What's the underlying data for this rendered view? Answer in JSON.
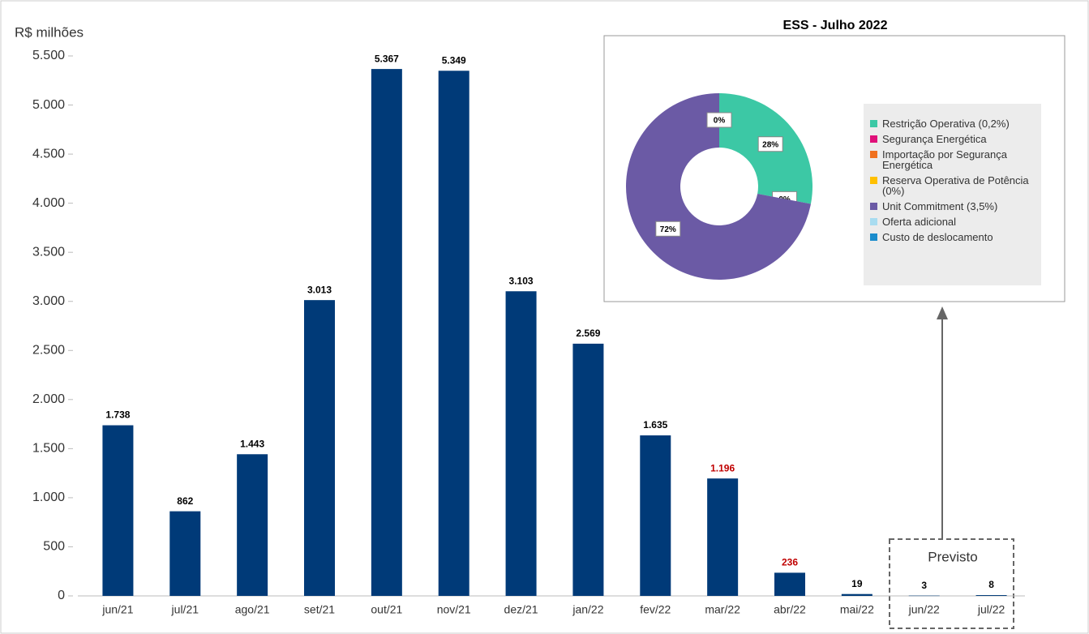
{
  "chart_data": [
    {
      "type": "bar",
      "ylabel": "R$ milhões",
      "categories": [
        "jun/21",
        "jul/21",
        "ago/21",
        "set/21",
        "out/21",
        "nov/21",
        "dez/21",
        "jan/22",
        "fev/22",
        "mar/22",
        "abr/22",
        "mai/22",
        "jun/22",
        "jul/22"
      ],
      "values": [
        1738,
        862,
        1443,
        3013,
        5367,
        5349,
        3103,
        2569,
        1635,
        1196,
        236,
        19,
        3,
        8
      ],
      "value_labels": [
        "1.738",
        "862",
        "1.443",
        "3.013",
        "5.367",
        "5.349",
        "3.103",
        "2.569",
        "1.635",
        "1.196",
        "236",
        "19",
        "3",
        "8"
      ],
      "value_label_colors": [
        "#000000",
        "#000000",
        "#000000",
        "#000000",
        "#000000",
        "#000000",
        "#000000",
        "#000000",
        "#000000",
        "#c00000",
        "#c00000",
        "#000000",
        "#000000",
        "#000000"
      ],
      "color": "#003a78",
      "ylim": [
        0,
        5500
      ],
      "yticks": [
        0,
        500,
        {
          "value": 1000,
          "label": "1.000"
        },
        {
          "value": 1500,
          "label": "1.500"
        },
        {
          "value": 2000,
          "label": "2.000"
        },
        {
          "value": 2500,
          "label": "2.500"
        },
        {
          "value": 3000,
          "label": "3.000"
        },
        {
          "value": 3500,
          "label": "3.500"
        },
        {
          "value": 4000,
          "label": "4.000"
        },
        {
          "value": 4500,
          "label": "4.500"
        },
        {
          "value": 5000,
          "label": "5.000"
        },
        {
          "value": 5500,
          "label": "5.500"
        }
      ],
      "grid": false,
      "annotation": "Previsto"
    },
    {
      "type": "pie",
      "title": "ESS - Julho 2022",
      "donut": true,
      "legend": "right",
      "categories": [
        "Restrição Operativa (0,2%)",
        "Segurança Energética",
        "Importação por Segurança Energética",
        "Reserva Operativa de Potência (0%)",
        "Unit Commitment (3,5%)",
        "Oferta adicional",
        "Custo de deslocamento"
      ],
      "values": [
        28,
        0,
        0,
        0,
        72,
        0,
        0
      ],
      "value_labels": [
        "28%",
        null,
        "0%",
        null,
        "72%",
        null,
        "0%"
      ],
      "colors": [
        "#3cc8a5",
        "#e0107a",
        "#f0701e",
        "#ffc000",
        "#6b5aa5",
        "#a8dcf0",
        "#1a8ccc"
      ]
    }
  ]
}
